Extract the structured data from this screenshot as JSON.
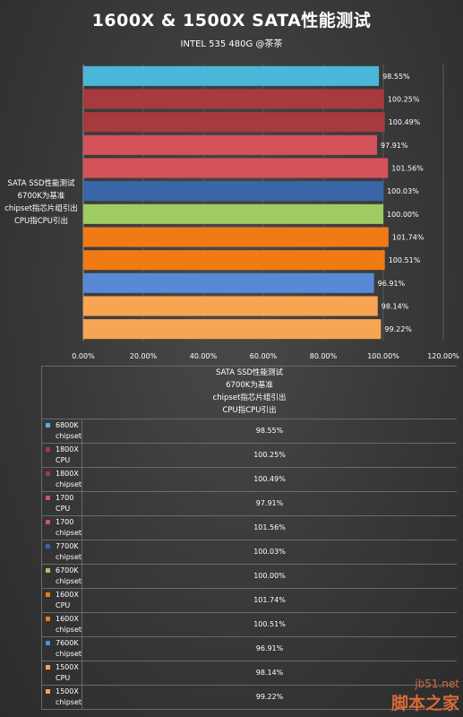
{
  "title": "1600X & 1500X SATA性能测试",
  "subtitle": "INTEL 535 480G @茶茶",
  "chart_data": {
    "type": "bar",
    "orientation": "horizontal",
    "y_label_lines": [
      "SATA SSD性能测试",
      "6700K为基准",
      "chipset指芯片组引出",
      "CPU指CPU引出"
    ],
    "x_ticks": [
      "0.00%",
      "20.00%",
      "40.00%",
      "60.00%",
      "80.00%",
      "100.00%",
      "120.00%"
    ],
    "xlim": [
      0,
      120
    ],
    "grid": true,
    "bars": [
      {
        "line1": "6800K",
        "line2": "chipset",
        "value": 98.55,
        "label": "98.55%",
        "color": "#4ab6d8"
      },
      {
        "line1": "1800X",
        "line2": "CPU",
        "value": 100.25,
        "label": "100.25%",
        "color": "#a73a3e"
      },
      {
        "line1": "1800X",
        "line2": "chipset",
        "value": 100.49,
        "label": "100.49%",
        "color": "#a73a3e"
      },
      {
        "line1": "1700",
        "line2": "CPU",
        "value": 97.91,
        "label": "97.91%",
        "color": "#d45358"
      },
      {
        "line1": "1700",
        "line2": "chipset",
        "value": 101.56,
        "label": "101.56%",
        "color": "#d45358"
      },
      {
        "line1": "7700K",
        "line2": "chipset",
        "value": 100.03,
        "label": "100.03%",
        "color": "#3a66a8"
      },
      {
        "line1": "6700K",
        "line2": "chipset",
        "value": 100.0,
        "label": "100.00%",
        "color": "#9fcb63"
      },
      {
        "line1": "1600X",
        "line2": "CPU",
        "value": 101.74,
        "label": "101.74%",
        "color": "#f07b14"
      },
      {
        "line1": "1600X",
        "line2": "chipset",
        "value": 100.51,
        "label": "100.51%",
        "color": "#f07b14"
      },
      {
        "line1": "7600K",
        "line2": "chipset",
        "value": 96.91,
        "label": "96.91%",
        "color": "#5889d6"
      },
      {
        "line1": "1500X",
        "line2": "CPU",
        "value": 98.14,
        "label": "98.14%",
        "color": "#f8a553"
      },
      {
        "line1": "1500X",
        "line2": "chipset",
        "value": 99.22,
        "label": "99.22%",
        "color": "#f8a553"
      }
    ]
  },
  "watermark": {
    "line1": "jb51.net",
    "line2": "脚本之家"
  }
}
